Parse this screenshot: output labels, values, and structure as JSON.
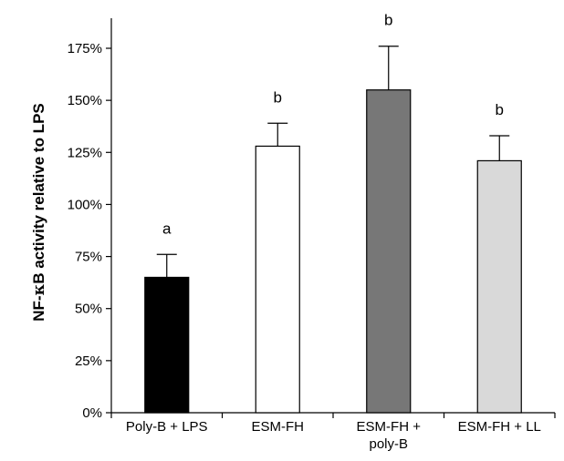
{
  "chart_data": {
    "type": "bar",
    "title": "",
    "xlabel": "",
    "ylabel_prefix": "NF-",
    "ylabel_symbol": "κ",
    "ylabel_suffix": "B activity relative to LPS",
    "ylim": [
      0,
      175
    ],
    "yticks": [
      "0%",
      "25%",
      "50%",
      "75%",
      "100%",
      "125%",
      "150%",
      "175%"
    ],
    "ytick_values": [
      0,
      25,
      50,
      75,
      100,
      125,
      150,
      175
    ],
    "categories": [
      [
        "Poly-B + LPS"
      ],
      [
        "ESM-FH"
      ],
      [
        "ESM-FH +",
        "poly-B"
      ],
      [
        "ESM-FH + LL"
      ]
    ],
    "values": [
      65,
      128,
      155,
      121
    ],
    "errors": [
      11,
      11,
      21,
      12
    ],
    "significance_labels": [
      "a",
      "b",
      "b",
      "b"
    ],
    "bar_colors": [
      "#000000",
      "#ffffff",
      "#777777",
      "#d9d9d9"
    ],
    "grid": false,
    "legend": "none"
  }
}
